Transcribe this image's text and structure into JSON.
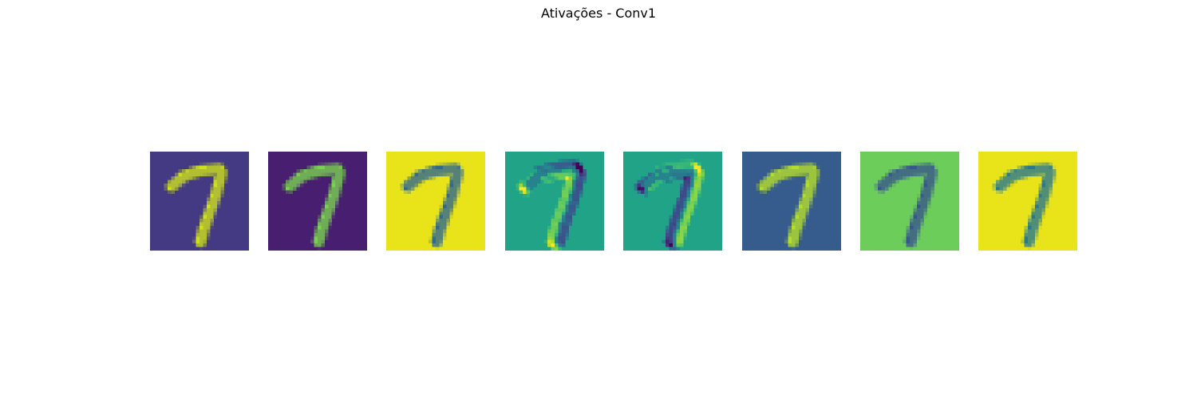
{
  "title": "Ativações - Conv1",
  "chart_data": {
    "type": "heatmap",
    "title": "Ativações - Conv1",
    "colormap": "viridis",
    "grid": false,
    "axes": "off",
    "resolution": [
      28,
      28
    ],
    "feature_map_count": 8,
    "input_digit": "7",
    "feature_maps": [
      {
        "index": 1,
        "background": "#443983",
        "stroke_color": "#cde11d",
        "response": "positive"
      },
      {
        "index": 2,
        "background": "#481f70",
        "stroke_color": "#7ad151",
        "response": "positive"
      },
      {
        "index": 3,
        "background": "#e8e419",
        "stroke_color": "#31688e",
        "response": "negative"
      },
      {
        "index": 4,
        "background": "#20a386",
        "stroke_color": "#440154",
        "response": "edge-mixed"
      },
      {
        "index": 5,
        "background": "#20a386",
        "stroke_color": "#440154",
        "response": "edge-mixed"
      },
      {
        "index": 6,
        "background": "#365c8d",
        "stroke_color": "#b5de2b",
        "response": "positive"
      },
      {
        "index": 7,
        "background": "#6ccd5a",
        "stroke_color": "#39568c",
        "response": "negative"
      },
      {
        "index": 8,
        "background": "#e8e419",
        "stroke_color": "#2a788e",
        "response": "negative"
      }
    ]
  }
}
